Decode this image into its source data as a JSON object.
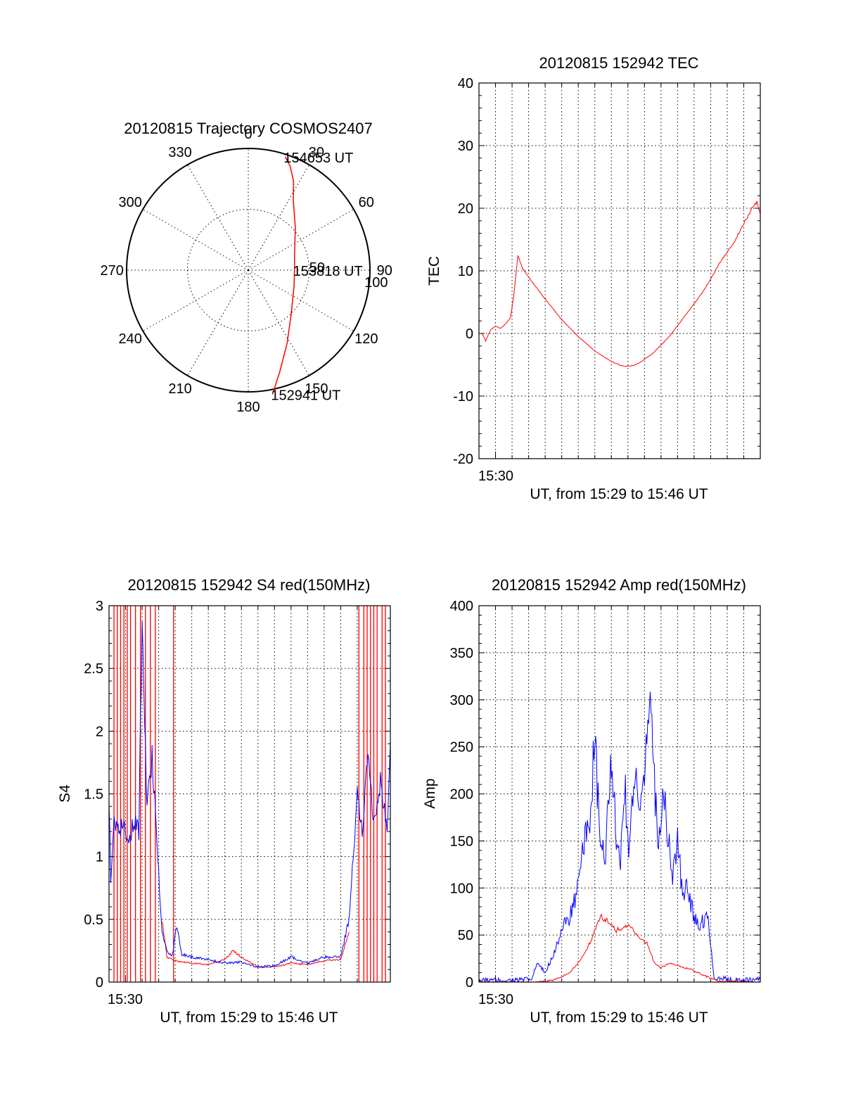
{
  "chart_data": [
    {
      "type": "polar",
      "title": "20120815 Trajectory COSMOS2407",
      "angle_labels": [
        "0",
        "30",
        "60",
        "90",
        "120",
        "150",
        "180",
        "210",
        "240",
        "270",
        "300",
        "330"
      ],
      "radial_labels": [
        "50",
        "100"
      ],
      "rlim": [
        0,
        100
      ],
      "grid": true,
      "series": [
        {
          "color": "#ff0000",
          "points": [
            [
              18,
              98
            ],
            [
              22,
              92
            ],
            [
              27,
              82
            ],
            [
              33,
              68
            ],
            [
              48,
              52
            ],
            [
              72,
              40
            ],
            [
              90,
              38
            ],
            [
              110,
              40
            ],
            [
              135,
              50
            ],
            [
              152,
              68
            ],
            [
              163,
              88
            ],
            [
              169,
              104
            ]
          ]
        }
      ],
      "annotations": [
        {
          "text": "154653 UT",
          "az": 18,
          "r": 98
        },
        {
          "text": "153818 UT",
          "az": 90,
          "r": 38
        },
        {
          "text": "152941 UT",
          "az": 169,
          "r": 104
        }
      ]
    },
    {
      "type": "line",
      "title": "20120815 152942 TEC",
      "ylabel": "TEC",
      "xlabel": "UT, from 15:29 to 15:46 UT",
      "x_tick_label": "15:30",
      "ylim": [
        -20,
        40
      ],
      "y_ticks": [
        "-20",
        "-10",
        "0",
        "10",
        "20",
        "30",
        "40"
      ],
      "xlim": [
        0,
        17
      ],
      "grid": true,
      "series": [
        {
          "color": "#ff0000",
          "points": [
            [
              0.2,
              0
            ],
            [
              0.4,
              -1.2
            ],
            [
              0.7,
              0.6
            ],
            [
              1.0,
              1.2
            ],
            [
              1.3,
              0.8
            ],
            [
              1.6,
              1.5
            ],
            [
              1.9,
              2.5
            ],
            [
              2.1,
              6
            ],
            [
              2.3,
              11
            ],
            [
              2.35,
              12.5
            ],
            [
              2.6,
              10.5
            ],
            [
              3,
              9
            ],
            [
              4,
              5.5
            ],
            [
              5,
              2.2
            ],
            [
              6,
              -0.5
            ],
            [
              7,
              -2.8
            ],
            [
              8,
              -4.5
            ],
            [
              8.8,
              -5.3
            ],
            [
              9.5,
              -5
            ],
            [
              10.5,
              -3.2
            ],
            [
              11.5,
              -0.5
            ],
            [
              12.5,
              3
            ],
            [
              13.5,
              6.5
            ],
            [
              14.5,
              11
            ],
            [
              15.5,
              15
            ],
            [
              16,
              17.5
            ],
            [
              16.5,
              20
            ],
            [
              16.8,
              21
            ],
            [
              17,
              19
            ]
          ]
        }
      ]
    },
    {
      "type": "line",
      "title": "20120815 152942 S4 red(150MHz)",
      "ylabel": "S4",
      "xlabel": "UT, from 15:29 to 15:46 UT",
      "x_tick_label": "15:30",
      "ylim": [
        0,
        3
      ],
      "y_ticks": [
        "0",
        "0.5",
        "1",
        "1.5",
        "2",
        "2.5",
        "3"
      ],
      "xlim": [
        0,
        17
      ],
      "grid": true,
      "series": [
        {
          "color": "#ff0000",
          "points": [
            [
              3.2,
              0.5
            ],
            [
              3.5,
              0.2
            ],
            [
              4,
              0.17
            ],
            [
              5,
              0.15
            ],
            [
              6,
              0.14
            ],
            [
              7,
              0.18
            ],
            [
              7.5,
              0.25
            ],
            [
              8,
              0.2
            ],
            [
              9,
              0.12
            ],
            [
              10,
              0.12
            ],
            [
              11,
              0.15
            ],
            [
              12,
              0.14
            ],
            [
              13,
              0.17
            ],
            [
              14,
              0.18
            ],
            [
              14.5,
              0.4
            ]
          ],
          "spikes_x": [
            0.3,
            0.5,
            0.7,
            0.9,
            1.1,
            1.3,
            1.6,
            1.9,
            2.2,
            2.5,
            2.8,
            3.9,
            15.1,
            15.4,
            15.6,
            15.8,
            16.0,
            16.2,
            16.5,
            16.7
          ]
        },
        {
          "color": "#0000ff",
          "points": [
            [
              0,
              1.5
            ],
            [
              0.1,
              0.8
            ],
            [
              0.3,
              1.3
            ],
            [
              0.6,
              1.2
            ],
            [
              0.9,
              1.3
            ],
            [
              1.2,
              1.1
            ],
            [
              1.5,
              1.3
            ],
            [
              1.8,
              1.2
            ],
            [
              2.0,
              2.9
            ],
            [
              2.3,
              1.4
            ],
            [
              2.6,
              1.8
            ],
            [
              2.9,
              1.1
            ],
            [
              3.2,
              0.4
            ],
            [
              3.5,
              0.25
            ],
            [
              3.8,
              0.2
            ],
            [
              4.1,
              0.45
            ],
            [
              4.4,
              0.22
            ],
            [
              5,
              0.2
            ],
            [
              6,
              0.18
            ],
            [
              7,
              0.15
            ],
            [
              8,
              0.16
            ],
            [
              9,
              0.12
            ],
            [
              10,
              0.13
            ],
            [
              11,
              0.2
            ],
            [
              12,
              0.15
            ],
            [
              13,
              0.2
            ],
            [
              14,
              0.2
            ],
            [
              14.5,
              0.5
            ],
            [
              14.8,
              1.1
            ],
            [
              15.0,
              1.5
            ],
            [
              15.3,
              1.2
            ],
            [
              15.6,
              1.8
            ],
            [
              16.0,
              1.3
            ],
            [
              16.4,
              1.6
            ],
            [
              16.8,
              1.2
            ],
            [
              17,
              1.9
            ]
          ]
        }
      ]
    },
    {
      "type": "line",
      "title": "20120815 152942 Amp red(150MHz)",
      "ylabel": "Amp",
      "xlabel": "UT, from 15:29 to 15:46 UT",
      "x_tick_label": "15:30",
      "ylim": [
        0,
        400
      ],
      "y_ticks": [
        "0",
        "50",
        "100",
        "150",
        "200",
        "250",
        "300",
        "350",
        "400"
      ],
      "xlim": [
        0,
        17
      ],
      "grid": true,
      "series": [
        {
          "color": "#0000ff",
          "points": [
            [
              0,
              2
            ],
            [
              2,
              2
            ],
            [
              3.2,
              3
            ],
            [
              3.5,
              20
            ],
            [
              4,
              10
            ],
            [
              4.5,
              30
            ],
            [
              5,
              55
            ],
            [
              5.5,
              70
            ],
            [
              6,
              100
            ],
            [
              6.4,
              150
            ],
            [
              6.7,
              180
            ],
            [
              7.0,
              250
            ],
            [
              7.3,
              160
            ],
            [
              7.6,
              120
            ],
            [
              7.9,
              220
            ],
            [
              8.2,
              180
            ],
            [
              8.5,
              120
            ],
            [
              8.8,
              210
            ],
            [
              9.1,
              140
            ],
            [
              9.4,
              230
            ],
            [
              9.7,
              170
            ],
            [
              10.0,
              200
            ],
            [
              10.3,
              320
            ],
            [
              10.5,
              250
            ],
            [
              10.8,
              150
            ],
            [
              11.1,
              200
            ],
            [
              11.4,
              160
            ],
            [
              11.7,
              110
            ],
            [
              12.0,
              150
            ],
            [
              12.3,
              90
            ],
            [
              12.6,
              100
            ],
            [
              13.0,
              70
            ],
            [
              13.4,
              60
            ],
            [
              13.8,
              75
            ],
            [
              14.2,
              5
            ],
            [
              15,
              3
            ],
            [
              16,
              2
            ],
            [
              17,
              3
            ]
          ]
        },
        {
          "color": "#ff0000",
          "points": [
            [
              0,
              0
            ],
            [
              3.5,
              0
            ],
            [
              4.5,
              2
            ],
            [
              5.5,
              10
            ],
            [
              6.2,
              25
            ],
            [
              6.8,
              45
            ],
            [
              7.3,
              70
            ],
            [
              7.8,
              65
            ],
            [
              8.3,
              55
            ],
            [
              9.0,
              60
            ],
            [
              9.6,
              50
            ],
            [
              10.2,
              40
            ],
            [
              10.6,
              20
            ],
            [
              11.0,
              15
            ],
            [
              11.5,
              20
            ],
            [
              12.0,
              18
            ],
            [
              12.5,
              15
            ],
            [
              13.0,
              12
            ],
            [
              13.5,
              8
            ],
            [
              14.0,
              4
            ],
            [
              14.5,
              1
            ],
            [
              17,
              0
            ]
          ]
        }
      ]
    }
  ]
}
